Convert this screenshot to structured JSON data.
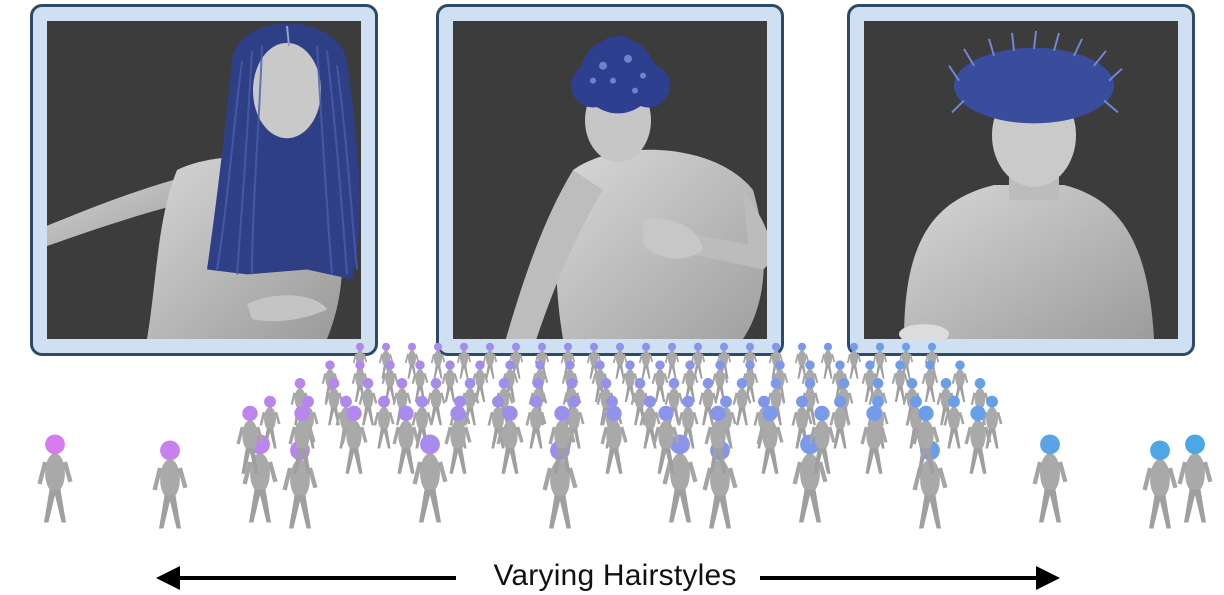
{
  "caption": {
    "label": "Varying Hairstyles"
  },
  "panels": [
    {
      "name": "long-straight-hair",
      "hair_color": "#2f3f86"
    },
    {
      "name": "short-curly-hair",
      "hair_color": "#2d3f8e"
    },
    {
      "name": "spiky-hair",
      "hair_color": "#3a4d9c"
    }
  ],
  "colors": {
    "skin": "#b9b9b9",
    "panel_border": "#2d4a66",
    "panel_fill": "#cfe0f3",
    "viewport_bg": "#3c3c3c",
    "crowd_hair_start": "#d77cf0",
    "crowd_hair_end": "#4aa8e6"
  }
}
